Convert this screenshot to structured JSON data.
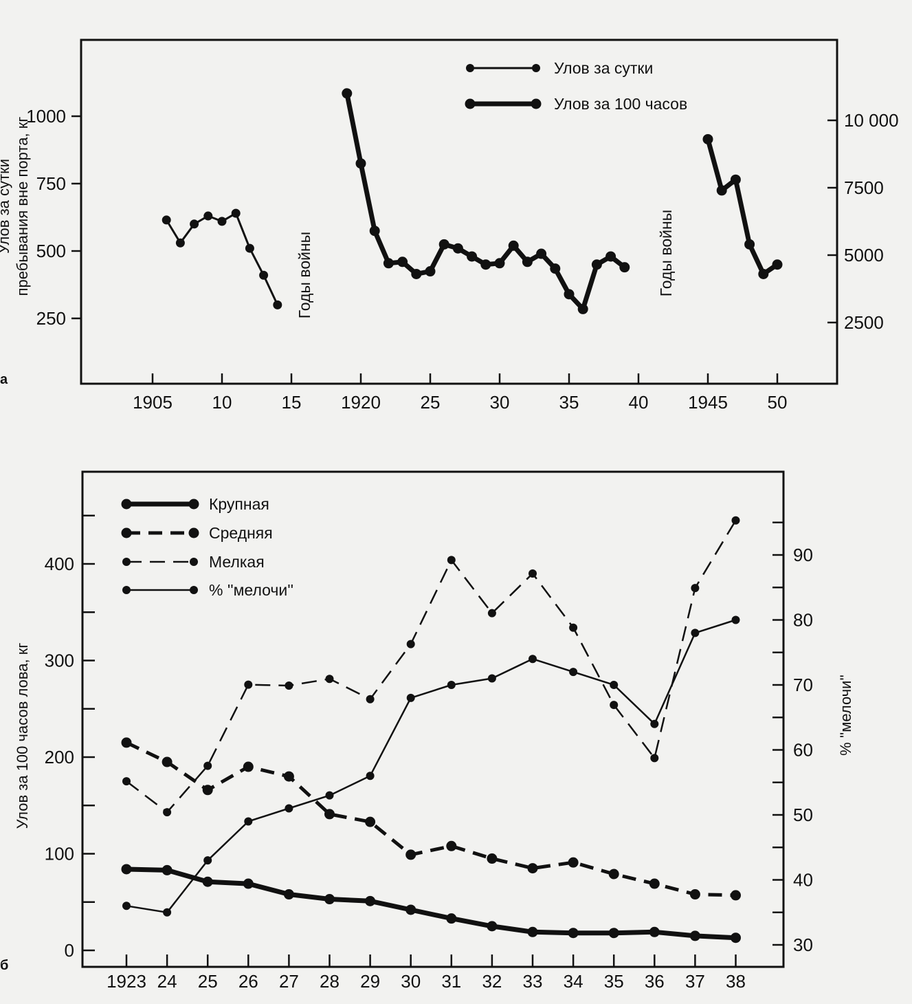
{
  "chart_data": [
    {
      "panel_label": "а",
      "type": "line",
      "ylabel_lines": [
        "Улов за сутки",
        "пребывания вне порта, кг"
      ],
      "y_ticks": [
        "250",
        "500",
        "750",
        "1000"
      ],
      "y2_ticks": [
        "2500",
        "5000",
        "7500",
        "10 000"
      ],
      "x_ticks": [
        "1905",
        "10",
        "15",
        "1920",
        "25",
        "30",
        "35",
        "40",
        "1945",
        "50"
      ],
      "annotation": "Годы войны",
      "ylim": [
        0,
        1250
      ],
      "y2lim": [
        0,
        12500
      ],
      "xlim": [
        1900,
        1954
      ],
      "series": [
        {
          "name": "Улов за сутки",
          "axis": "left",
          "x": [
            1906,
            1907,
            1908,
            1909,
            1910,
            1911,
            1912,
            1913,
            1914
          ],
          "y": [
            615,
            530,
            600,
            630,
            610,
            640,
            510,
            410,
            300
          ]
        },
        {
          "name": "Улов за 100 часов",
          "axis": "right",
          "x": [
            1919,
            1920,
            1921,
            1922,
            1923,
            1924,
            1925,
            1926,
            1927,
            1928,
            1929,
            1930,
            1931,
            1932,
            1933,
            1934,
            1935,
            1936,
            1937,
            1938,
            1939
          ],
          "y": [
            11000,
            8400,
            5900,
            4700,
            4750,
            4300,
            4400,
            5400,
            5250,
            4950,
            4650,
            4700,
            5350,
            4750,
            5050,
            4500,
            3550,
            3000,
            4650,
            4950,
            4550
          ]
        },
        {
          "name": "Улов за 100 часов",
          "axis": "right",
          "x": [
            1945,
            1946,
            1947,
            1948,
            1949,
            1950
          ],
          "y": [
            9300,
            7400,
            7800,
            5400,
            4300,
            4650
          ]
        }
      ]
    },
    {
      "panel_label": "б",
      "type": "line",
      "ylabel": "Улов за 100 часов лова, кг",
      "y2label": "% ''мелочи''",
      "categories": [
        "1923",
        "24",
        "25",
        "26",
        "27",
        "28",
        "29",
        "30",
        "31",
        "32",
        "33",
        "34",
        "35",
        "36",
        "37",
        "38"
      ],
      "y_ticks": [
        "0",
        "100",
        "200",
        "300",
        "400"
      ],
      "y2_ticks": [
        "30",
        "40",
        "50",
        "60",
        "70",
        "80",
        "90"
      ],
      "ylim": [
        -10,
        450
      ],
      "y2lim": [
        29,
        98
      ],
      "series": [
        {
          "name": "Крупная",
          "axis": "left",
          "style": "thick-solid",
          "values": [
            84,
            83,
            71,
            69,
            58,
            53,
            51,
            42,
            33,
            25,
            19,
            18,
            18,
            19,
            15,
            13
          ]
        },
        {
          "name": "Средняя",
          "axis": "left",
          "style": "thick-dashed",
          "values": [
            215,
            195,
            166,
            190,
            180,
            141,
            133,
            99,
            108,
            95,
            85,
            91,
            79,
            69,
            58,
            57
          ]
        },
        {
          "name": "Мелкая",
          "axis": "left",
          "style": "thin-dashed",
          "values": [
            175,
            143,
            191,
            275,
            274,
            281,
            260,
            317,
            404,
            349,
            390,
            334,
            254,
            199,
            375,
            445
          ]
        },
        {
          "name": "% ''мелочи''",
          "axis": "right",
          "style": "thin-solid",
          "values": [
            36,
            35,
            43,
            49,
            51,
            53,
            56,
            68,
            70,
            71,
            74,
            72,
            70,
            64,
            78,
            80
          ]
        }
      ]
    }
  ]
}
